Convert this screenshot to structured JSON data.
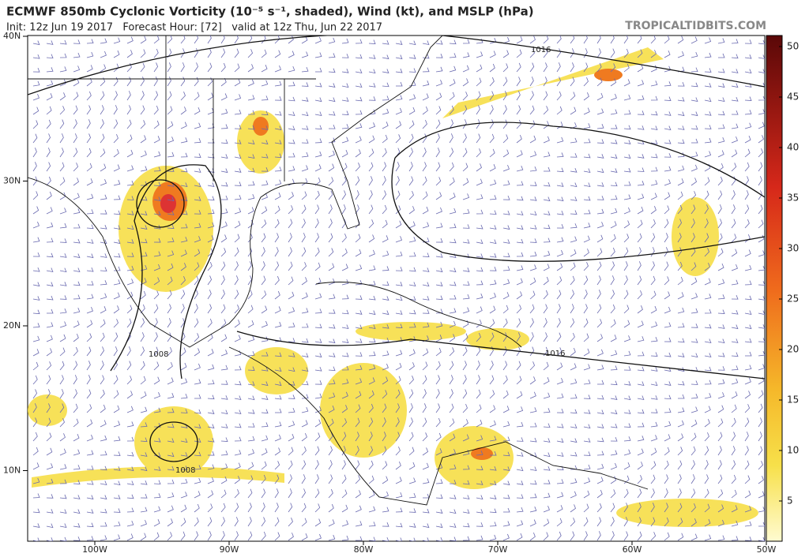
{
  "header": {
    "title": "ECMWF 850mb Cyclonic Vorticity (10⁻⁵ s⁻¹, shaded), Wind (kt), and MSLP (hPa)",
    "subtitle": "Init: 12z Jun 19 2017   Forecast Hour: [72]   valid at 12z Thu, Jun 22 2017",
    "credit": "TROPICALTIDBITS.COM"
  },
  "map": {
    "lat_labels": [
      "40N",
      "30N",
      "20N",
      "10N"
    ],
    "lon_labels": [
      "100W",
      "90W",
      "80W",
      "70W",
      "60W",
      "50W"
    ],
    "isobar_labels": [
      "1016",
      "1016",
      "1008",
      "1008"
    ]
  },
  "colorbar": {
    "labels": [
      "50",
      "45",
      "40",
      "35",
      "30",
      "25",
      "20",
      "15",
      "10",
      "5"
    ]
  }
}
